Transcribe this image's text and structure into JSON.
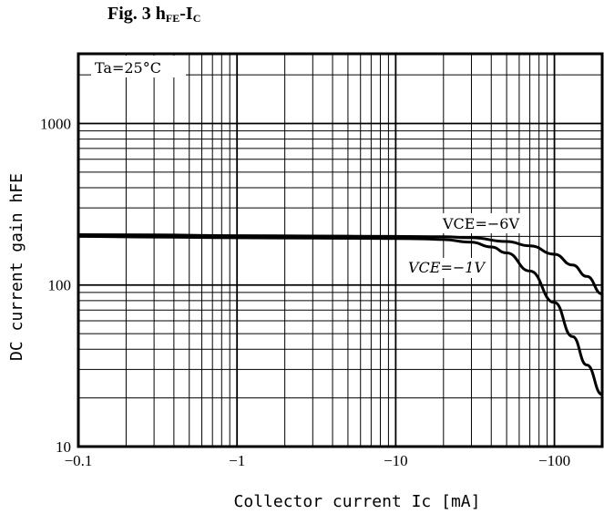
{
  "chart_data": {
    "type": "line",
    "title": "Fig. 3 hFE-IC",
    "title_parts": {
      "prefix": "Fig. 3 h",
      "sub1": "FE",
      "dash": "-I",
      "sub2": "C"
    },
    "xlabel": "Collector current Ic [mA]",
    "ylabel": "DC current gain hFE",
    "x_scale": "log",
    "y_scale": "log",
    "xlim": [
      -0.1,
      -200
    ],
    "ylim": [
      10,
      2700
    ],
    "x_ticks": [
      -0.1,
      -1,
      -10,
      -100
    ],
    "x_tick_labels": [
      "−0.1",
      "−1",
      "−10",
      "−100"
    ],
    "y_ticks": [
      10,
      100,
      1000
    ],
    "y_tick_labels": [
      "10",
      "100",
      "1000"
    ],
    "grid": true,
    "annotations": [
      "Ta=25°C"
    ],
    "series": [
      {
        "name": "VCE=−6V",
        "x": [
          -0.1,
          -0.3,
          -1,
          -3,
          -10,
          -20,
          -30,
          -50,
          -70,
          -100,
          -130,
          -160,
          -200
        ],
        "y": [
          205,
          204,
          202,
          201,
          200,
          199,
          196,
          186,
          175,
          155,
          133,
          113,
          88
        ]
      },
      {
        "name": "VCE=−1V",
        "x": [
          -0.1,
          -0.3,
          -1,
          -3,
          -10,
          -15,
          -20,
          -30,
          -40,
          -50,
          -70,
          -100,
          -130,
          -160,
          -200
        ],
        "y": [
          200,
          198,
          196,
          195,
          194,
          193,
          191,
          184,
          172,
          158,
          122,
          78,
          48,
          32,
          21
        ]
      }
    ]
  }
}
